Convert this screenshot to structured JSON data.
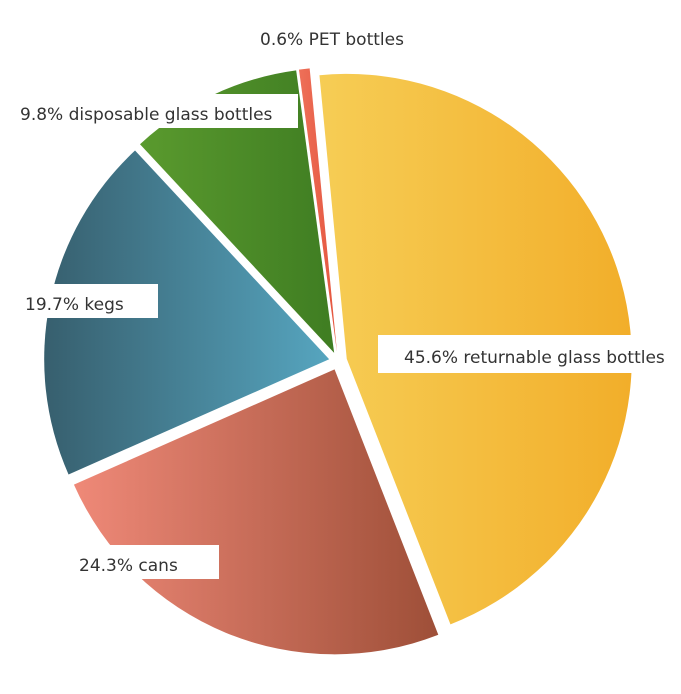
{
  "chart_data": {
    "type": "pie",
    "title": "",
    "slices": [
      {
        "label": "45.6% returnable glass bottles",
        "value": 45.6,
        "color_light": "#f6cd55",
        "color_dark": "#f2ae2a"
      },
      {
        "label": "24.3% cans",
        "value": 24.3,
        "color_light": "#ef8978",
        "color_dark": "#9e4f38"
      },
      {
        "label": "19.7% kegs",
        "value": 19.7,
        "color_light": "#375f6e",
        "color_dark": "#56a5bf"
      },
      {
        "label": "9.8% disposable glass bottles",
        "value": 9.8,
        "color_light": "#5a9a2e",
        "color_dark": "#3f7d22"
      },
      {
        "label": "0.6% PET bottles",
        "value": 0.6,
        "color_light": "#ee7059",
        "color_dark": "#e4553e"
      }
    ]
  }
}
